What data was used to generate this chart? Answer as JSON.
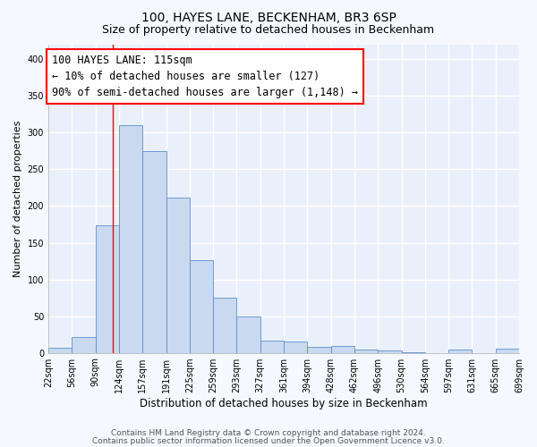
{
  "title": "100, HAYES LANE, BECKENHAM, BR3 6SP",
  "subtitle": "Size of property relative to detached houses in Beckenham",
  "xlabel": "Distribution of detached houses by size in Beckenham",
  "ylabel": "Number of detached properties",
  "bin_labels": [
    "22sqm",
    "56sqm",
    "90sqm",
    "124sqm",
    "157sqm",
    "191sqm",
    "225sqm",
    "259sqm",
    "293sqm",
    "327sqm",
    "361sqm",
    "394sqm",
    "428sqm",
    "462sqm",
    "496sqm",
    "530sqm",
    "564sqm",
    "597sqm",
    "631sqm",
    "665sqm",
    "699sqm"
  ],
  "bar_values": [
    7,
    22,
    174,
    310,
    275,
    211,
    126,
    75,
    49,
    16,
    15,
    8,
    9,
    4,
    3,
    1,
    0,
    4,
    0,
    5
  ],
  "bar_color": "#c9d9f0",
  "bar_edge_color": "#5b8fc9",
  "vline_color": "red",
  "annotation_title": "100 HAYES LANE: 115sqm",
  "annotation_line1": "← 10% of detached houses are smaller (127)",
  "annotation_line2": "90% of semi-detached houses are larger (1,148) →",
  "annotation_box_color": "white",
  "annotation_box_edge_color": "red",
  "ylim": [
    0,
    420
  ],
  "yticks": [
    0,
    50,
    100,
    150,
    200,
    250,
    300,
    350,
    400
  ],
  "footer1": "Contains HM Land Registry data © Crown copyright and database right 2024.",
  "footer2": "Contains public sector information licensed under the Open Government Licence v3.0.",
  "plot_bg_color": "#eaf0fb",
  "fig_bg_color": "#f5f8ff",
  "grid_color": "white",
  "title_fontsize": 10,
  "subtitle_fontsize": 9,
  "xlabel_fontsize": 8.5,
  "ylabel_fontsize": 8,
  "tick_fontsize": 7,
  "footer_fontsize": 6.5,
  "ann_fontsize": 8.5
}
